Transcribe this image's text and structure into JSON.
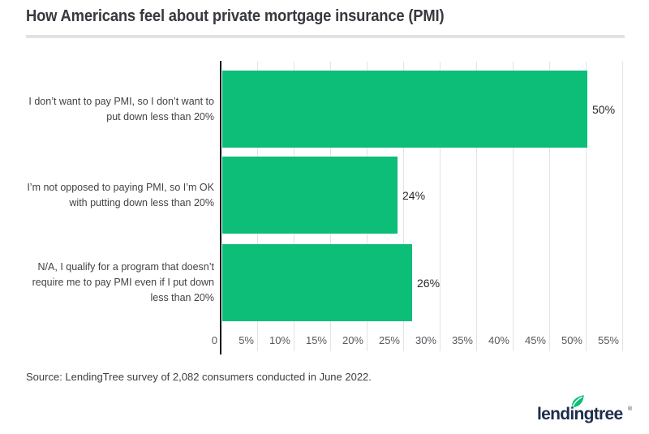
{
  "header": {
    "title": "How Americans feel about private mortgage insurance (PMI)"
  },
  "chart_data": {
    "type": "bar",
    "orientation": "horizontal",
    "title": "How Americans feel about private mortgage insurance (PMI)",
    "categories": [
      "I don’t want to pay PMI, so I don’t want to put down less than 20%",
      "I’m not opposed to paying PMI, so I’m OK with putting down less than 20%",
      "N/A, I qualify for a program that doesn’t require me to pay PMI even if I put down less than 20%"
    ],
    "category_lines": [
      [
        "I don’t want to pay PMI, so I don’t want to",
        "put down less than 20%"
      ],
      [
        "I’m not opposed to paying PMI, so I’m OK",
        "with putting down less than 20%"
      ],
      [
        "N/A, I qualify for a program that doesn’t",
        "require me to pay PMI even if I put down",
        "less than 20%"
      ]
    ],
    "values": [
      50,
      24,
      26
    ],
    "value_labels": [
      "50%",
      "24%",
      "26%"
    ],
    "x_ticks": [
      "0",
      "5%",
      "10%",
      "15%",
      "20%",
      "25%",
      "30%",
      "35%",
      "40%",
      "45%",
      "50%",
      "55%"
    ],
    "x_tick_values": [
      0,
      5,
      10,
      15,
      20,
      25,
      30,
      35,
      40,
      45,
      50,
      55
    ],
    "xlim": [
      0,
      55
    ],
    "grid": true,
    "legend": "none",
    "bar_color": "#0cbe78",
    "axis_color": "#17191b",
    "gridline_color": "#e3e3e3"
  },
  "source": {
    "text": "Source: LendingTree survey of 2,082 consumers conducted in June 2022."
  },
  "logo": {
    "text": "lendingtree",
    "registered_mark": "®",
    "brand_green": "#0cbe78",
    "brand_navy": "#1d2d4d"
  }
}
